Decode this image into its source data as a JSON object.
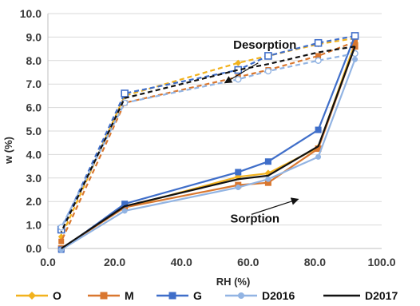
{
  "chart_data": {
    "type": "line",
    "xlabel": "RH (%)",
    "ylabel": "w (%)",
    "xlim": [
      0,
      100
    ],
    "ylim": [
      0,
      10
    ],
    "x_ticks": [
      "0.0",
      "20.0",
      "40.0",
      "60.0",
      "80.0",
      "100.0"
    ],
    "y_ticks": [
      "0.0",
      "1.0",
      "2.0",
      "3.0",
      "4.0",
      "5.0",
      "6.0",
      "7.0",
      "8.0",
      "9.0",
      "10.0"
    ],
    "grid": "horizontal",
    "legend_position": "bottom",
    "annotations": [
      {
        "text": "Desorption",
        "at": [
          65,
          8.5
        ],
        "arrow_from": [
          63,
          7.9
        ],
        "arrow_to": [
          53,
          7.05
        ]
      },
      {
        "text": "Sorption",
        "at": [
          62,
          1.1
        ],
        "arrow_from": [
          61,
          1.45
        ],
        "arrow_to": [
          75,
          2.1
        ]
      }
    ],
    "series": [
      {
        "name": "O",
        "color": "#F2B21E",
        "marker": "diamond",
        "sorption": [
          [
            4,
            0.0
          ],
          [
            23,
            1.75
          ],
          [
            57,
            3.05
          ],
          [
            66,
            3.2
          ],
          [
            81,
            4.3
          ],
          [
            92,
            8.75
          ]
        ],
        "desorption": [
          [
            92,
            8.95
          ],
          [
            81,
            8.7
          ],
          [
            66,
            8.2
          ],
          [
            57,
            7.9
          ],
          [
            23,
            6.5
          ],
          [
            4,
            0.5
          ]
        ]
      },
      {
        "name": "M",
        "color": "#D9772F",
        "marker": "square",
        "sorption": [
          [
            4,
            0.0
          ],
          [
            23,
            1.75
          ],
          [
            57,
            2.7
          ],
          [
            66,
            2.8
          ],
          [
            81,
            4.25
          ],
          [
            92,
            8.6
          ]
        ],
        "desorption": [
          [
            92,
            8.8
          ],
          [
            81,
            8.2
          ],
          [
            66,
            7.6
          ],
          [
            57,
            7.3
          ],
          [
            23,
            6.2
          ],
          [
            4,
            0.3
          ]
        ]
      },
      {
        "name": "G",
        "color": "#3F6EC9",
        "marker": "square",
        "sorption": [
          [
            4,
            -0.05
          ],
          [
            23,
            1.9
          ],
          [
            57,
            3.25
          ],
          [
            66,
            3.7
          ],
          [
            81,
            5.05
          ],
          [
            92,
            9.05
          ]
        ],
        "desorption": [
          [
            92,
            9.05
          ],
          [
            81,
            8.75
          ],
          [
            66,
            8.2
          ],
          [
            57,
            7.6
          ],
          [
            23,
            6.6
          ],
          [
            4,
            0.8
          ]
        ]
      },
      {
        "name": "D2016",
        "color": "#92B4E3",
        "marker": "circle",
        "sorption": [
          [
            4,
            -0.05
          ],
          [
            23,
            1.6
          ],
          [
            57,
            2.6
          ],
          [
            66,
            2.95
          ],
          [
            81,
            3.9
          ],
          [
            92,
            8.05
          ]
        ],
        "desorption": [
          [
            92,
            8.3
          ],
          [
            81,
            8.0
          ],
          [
            66,
            7.55
          ],
          [
            57,
            7.2
          ],
          [
            23,
            6.2
          ],
          [
            4,
            0.9
          ]
        ]
      },
      {
        "name": "D2017",
        "color": "#111111",
        "marker": "none",
        "sorption": [
          [
            4,
            0.0
          ],
          [
            23,
            1.8
          ],
          [
            57,
            2.95
          ],
          [
            66,
            3.1
          ],
          [
            81,
            4.35
          ],
          [
            92,
            8.6
          ]
        ],
        "desorption": [
          [
            92,
            8.6
          ],
          [
            81,
            8.35
          ],
          [
            66,
            7.85
          ],
          [
            57,
            7.6
          ],
          [
            23,
            6.4
          ],
          [
            4,
            0.7
          ]
        ]
      }
    ]
  }
}
